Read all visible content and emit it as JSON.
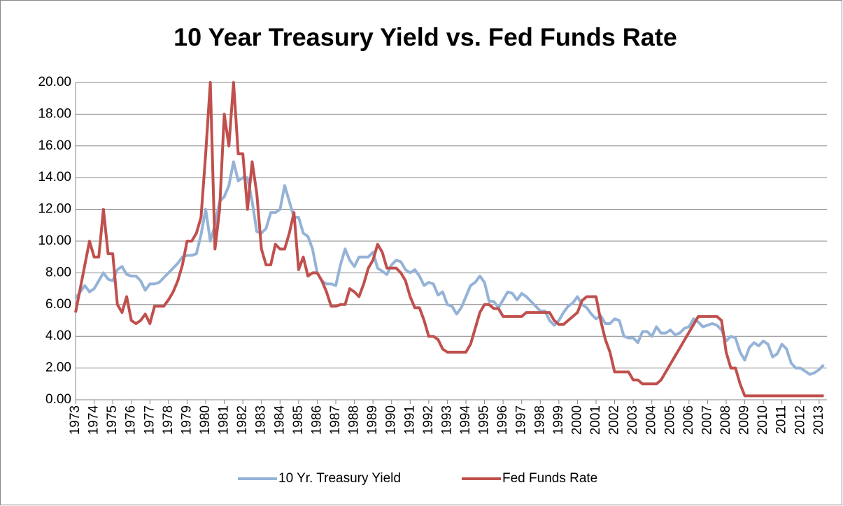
{
  "chart_data": {
    "type": "line",
    "title": "10 Year Treasury Yield vs. Fed Funds Rate",
    "x": [
      1973,
      1973.25,
      1973.5,
      1973.75,
      1974,
      1974.25,
      1974.5,
      1974.75,
      1975,
      1975.25,
      1975.5,
      1975.75,
      1976,
      1976.25,
      1976.5,
      1976.75,
      1977,
      1977.25,
      1977.5,
      1977.75,
      1978,
      1978.25,
      1978.5,
      1978.75,
      1979,
      1979.25,
      1979.5,
      1979.75,
      1980,
      1980.25,
      1980.5,
      1980.75,
      1981,
      1981.25,
      1981.5,
      1981.75,
      1982,
      1982.25,
      1982.5,
      1982.75,
      1983,
      1983.25,
      1983.5,
      1983.75,
      1984,
      1984.25,
      1984.5,
      1984.75,
      1985,
      1985.25,
      1985.5,
      1985.75,
      1986,
      1986.25,
      1986.5,
      1986.75,
      1987,
      1987.25,
      1987.5,
      1987.75,
      1988,
      1988.25,
      1988.5,
      1988.75,
      1989,
      1989.25,
      1989.5,
      1989.75,
      1990,
      1990.25,
      1990.5,
      1990.75,
      1991,
      1991.25,
      1991.5,
      1991.75,
      1992,
      1992.25,
      1992.5,
      1992.75,
      1993,
      1993.25,
      1993.5,
      1993.75,
      1994,
      1994.25,
      1994.5,
      1994.75,
      1995,
      1995.25,
      1995.5,
      1995.75,
      1996,
      1996.25,
      1996.5,
      1996.75,
      1997,
      1997.25,
      1997.5,
      1997.75,
      1998,
      1998.25,
      1998.5,
      1998.75,
      1999,
      1999.25,
      1999.5,
      1999.75,
      2000,
      2000.25,
      2000.5,
      2000.75,
      2001,
      2001.25,
      2001.5,
      2001.75,
      2002,
      2002.25,
      2002.5,
      2002.75,
      2003,
      2003.25,
      2003.5,
      2003.75,
      2004,
      2004.25,
      2004.5,
      2004.75,
      2005,
      2005.25,
      2005.5,
      2005.75,
      2006,
      2006.25,
      2006.5,
      2006.75,
      2007,
      2007.25,
      2007.5,
      2007.75,
      2008,
      2008.25,
      2008.5,
      2008.75,
      2009,
      2009.25,
      2009.5,
      2009.75,
      2010,
      2010.25,
      2010.5,
      2010.75,
      2011,
      2011.25,
      2011.5,
      2011.75,
      2012,
      2012.25,
      2012.5,
      2012.75,
      2013,
      2013.25
    ],
    "series": [
      {
        "name": "10 Yr. Treasury Yield",
        "color": "#95b3d7",
        "values": [
          6.4,
          6.8,
          7.2,
          6.8,
          7.0,
          7.5,
          8.0,
          7.6,
          7.5,
          8.2,
          8.4,
          7.9,
          7.8,
          7.8,
          7.5,
          6.9,
          7.3,
          7.3,
          7.4,
          7.7,
          8.0,
          8.3,
          8.6,
          9.0,
          9.1,
          9.1,
          9.2,
          10.4,
          12.0,
          10.0,
          11.0,
          12.5,
          12.8,
          13.5,
          15.0,
          13.8,
          14.0,
          14.0,
          12.5,
          10.6,
          10.5,
          10.8,
          11.8,
          11.8,
          12.0,
          13.5,
          12.5,
          11.5,
          11.5,
          10.5,
          10.3,
          9.5,
          8.0,
          7.5,
          7.3,
          7.3,
          7.2,
          8.5,
          9.5,
          8.8,
          8.4,
          9.0,
          9.0,
          9.0,
          9.3,
          8.3,
          8.1,
          7.9,
          8.5,
          8.8,
          8.7,
          8.2,
          8.0,
          8.2,
          7.8,
          7.2,
          7.4,
          7.3,
          6.6,
          6.8,
          6.0,
          5.9,
          5.4,
          5.8,
          6.5,
          7.2,
          7.4,
          7.8,
          7.4,
          6.2,
          6.2,
          5.8,
          6.3,
          6.8,
          6.7,
          6.3,
          6.7,
          6.5,
          6.2,
          5.9,
          5.6,
          5.6,
          5.0,
          4.7,
          5.0,
          5.5,
          5.9,
          6.1,
          6.5,
          6.0,
          5.8,
          5.4,
          5.1,
          5.3,
          4.8,
          4.8,
          5.1,
          5.0,
          4.0,
          3.9,
          3.9,
          3.6,
          4.3,
          4.3,
          4.0,
          4.6,
          4.2,
          4.2,
          4.4,
          4.1,
          4.2,
          4.5,
          4.6,
          5.1,
          4.9,
          4.6,
          4.7,
          4.8,
          4.7,
          4.4,
          3.7,
          4.0,
          3.9,
          3.0,
          2.5,
          3.3,
          3.6,
          3.4,
          3.7,
          3.5,
          2.7,
          2.9,
          3.5,
          3.2,
          2.3,
          2.0,
          2.0,
          1.8,
          1.6,
          1.7,
          1.9,
          2.2
        ]
      },
      {
        "name": "Fed Funds Rate",
        "color": "#c0504d",
        "values": [
          5.5,
          7.0,
          8.5,
          10.0,
          9.0,
          9.0,
          12.0,
          9.2,
          9.2,
          6.0,
          5.5,
          6.5,
          5.0,
          4.8,
          5.0,
          5.4,
          4.8,
          5.9,
          5.9,
          5.9,
          6.3,
          6.8,
          7.5,
          8.5,
          10.0,
          10.0,
          10.5,
          11.5,
          15.5,
          20.0,
          9.5,
          12.0,
          18.0,
          16.0,
          20.0,
          15.5,
          15.5,
          12.0,
          15.0,
          13.0,
          9.5,
          8.5,
          8.5,
          9.8,
          9.5,
          9.5,
          10.5,
          11.8,
          8.2,
          9.0,
          7.8,
          8.0,
          8.0,
          7.5,
          6.8,
          5.9,
          5.9,
          6.0,
          6.0,
          7.0,
          6.8,
          6.5,
          7.3,
          8.3,
          8.8,
          9.8,
          9.3,
          8.3,
          8.3,
          8.3,
          8.0,
          7.5,
          6.5,
          5.8,
          5.8,
          5.0,
          4.0,
          4.0,
          3.8,
          3.2,
          3.0,
          3.0,
          3.0,
          3.0,
          3.0,
          3.5,
          4.5,
          5.5,
          6.0,
          6.0,
          5.75,
          5.75,
          5.25,
          5.25,
          5.25,
          5.25,
          5.25,
          5.5,
          5.5,
          5.5,
          5.5,
          5.5,
          5.5,
          5.0,
          4.75,
          4.75,
          5.0,
          5.25,
          5.5,
          6.25,
          6.5,
          6.5,
          6.5,
          5.0,
          3.8,
          3.0,
          1.75,
          1.75,
          1.75,
          1.75,
          1.25,
          1.25,
          1.0,
          1.0,
          1.0,
          1.0,
          1.25,
          1.75,
          2.25,
          2.75,
          3.25,
          3.75,
          4.25,
          4.75,
          5.25,
          5.25,
          5.25,
          5.25,
          5.25,
          5.0,
          3.0,
          2.0,
          2.0,
          1.0,
          0.25,
          0.25,
          0.25,
          0.25,
          0.25,
          0.25,
          0.25,
          0.25,
          0.25,
          0.25,
          0.25,
          0.25,
          0.25,
          0.25,
          0.25,
          0.25,
          0.25,
          0.25
        ]
      }
    ],
    "xlim": [
      1973,
      2013.42
    ],
    "xticks": [
      1973,
      1974,
      1975,
      1976,
      1977,
      1978,
      1979,
      1980,
      1981,
      1982,
      1983,
      1984,
      1985,
      1986,
      1987,
      1988,
      1989,
      1990,
      1991,
      1992,
      1993,
      1994,
      1995,
      1996,
      1997,
      1998,
      1999,
      2000,
      2001,
      2002,
      2003,
      2004,
      2005,
      2006,
      2007,
      2008,
      2009,
      2010,
      2011,
      2012,
      2013
    ],
    "ylim": [
      0,
      20
    ],
    "yticks": [
      {
        "value": 0,
        "label": "0.00"
      },
      {
        "value": 2,
        "label": "2.00"
      },
      {
        "value": 4,
        "label": "4.00"
      },
      {
        "value": 6,
        "label": "6.00"
      },
      {
        "value": 8,
        "label": "8.00"
      },
      {
        "value": 10,
        "label": "10.00"
      },
      {
        "value": 12,
        "label": "12.00"
      },
      {
        "value": 14,
        "label": "14.00"
      },
      {
        "value": 16,
        "label": "16.00"
      },
      {
        "value": 18,
        "label": "18.00"
      },
      {
        "value": 20,
        "label": "20.00"
      }
    ],
    "grid": true,
    "legend": "bottom"
  }
}
